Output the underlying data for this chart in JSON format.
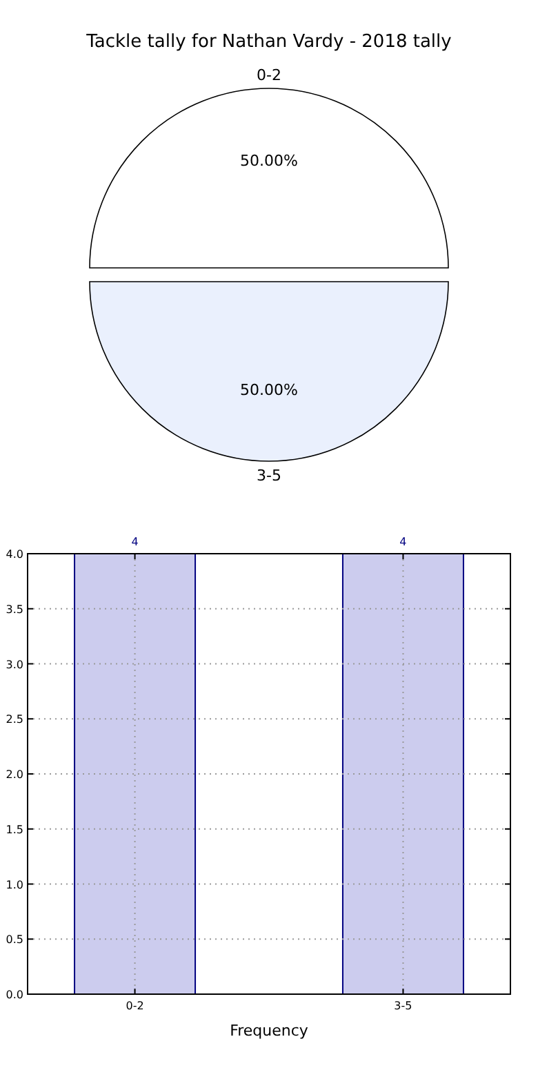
{
  "chart_data": [
    {
      "type": "pie",
      "title": "Tackle tally for Nathan Vardy - 2018 tally",
      "categories": [
        "0-2",
        "3-5"
      ],
      "values": [
        50,
        50
      ],
      "colors": [
        "#ffffff",
        "#eaf0fd"
      ],
      "value_labels": [
        "50.00%",
        "50.00%"
      ]
    },
    {
      "type": "bar",
      "categories": [
        "0-2",
        "3-5"
      ],
      "values": [
        4,
        4
      ],
      "color": "#ccccee",
      "xlabel": "Frequency",
      "ylim": [
        0,
        4
      ],
      "yticks": [
        {
          "value": 0,
          "label": "0.0"
        },
        {
          "value": 0.5,
          "label": "0.5"
        },
        {
          "value": 1,
          "label": "1.0"
        },
        {
          "value": 1.5,
          "label": "1.5"
        },
        {
          "value": 2,
          "label": "2.0"
        },
        {
          "value": 2.5,
          "label": "2.5"
        },
        {
          "value": 3,
          "label": "3.0"
        },
        {
          "value": 3.5,
          "label": "3.5"
        },
        {
          "value": 4,
          "label": "4.0"
        }
      ],
      "grid": true,
      "data_labels": true
    }
  ]
}
